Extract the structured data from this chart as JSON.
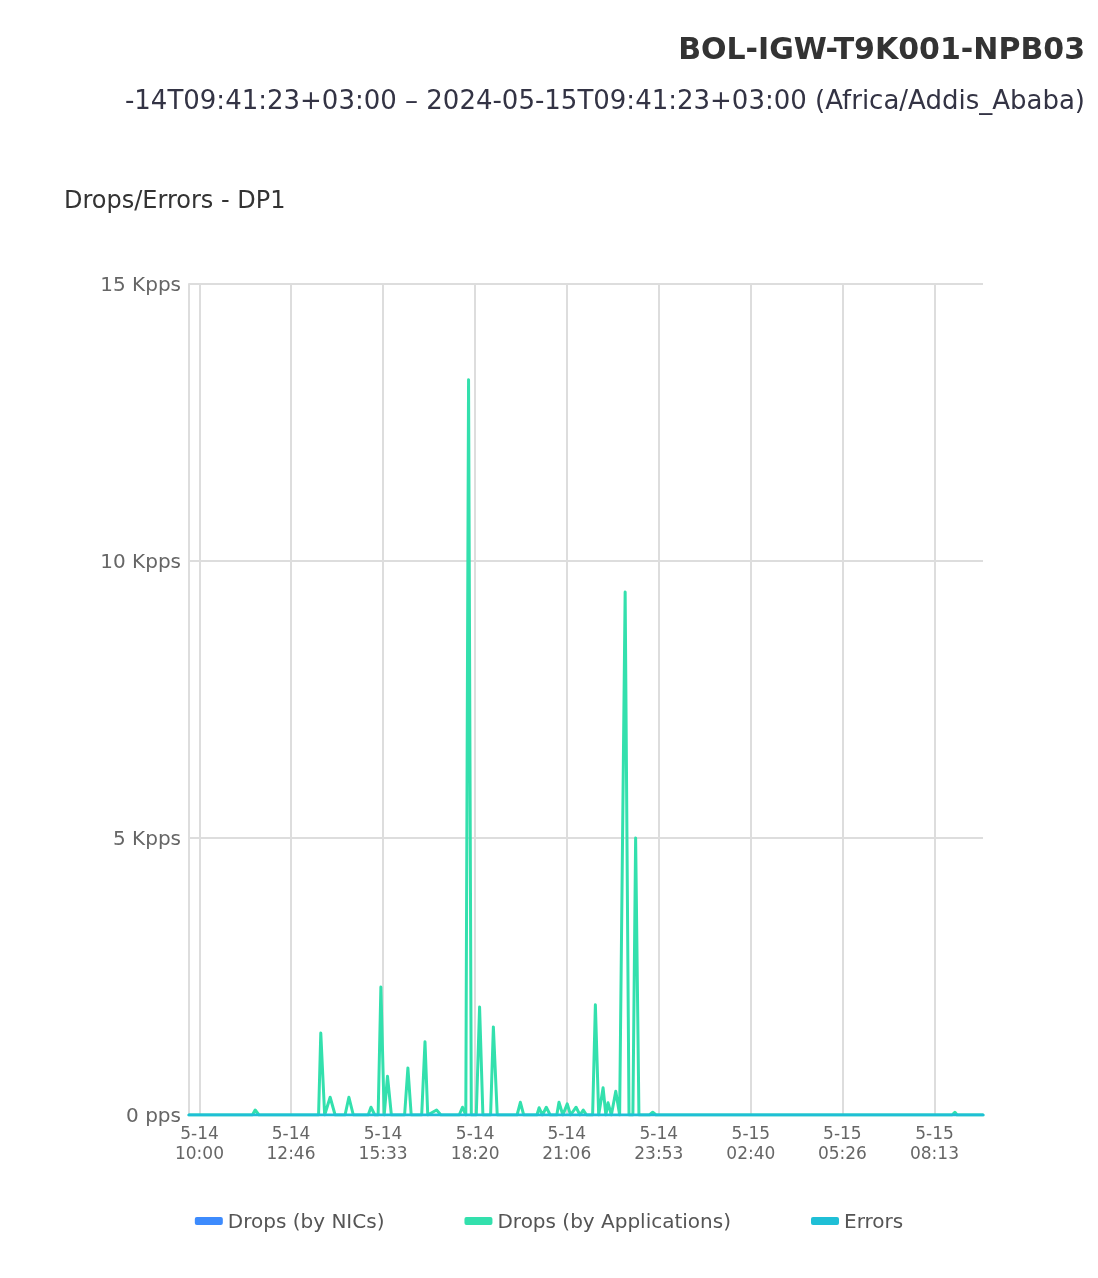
{
  "chart_data": {
    "type": "line",
    "title": "BOL-IGW-T9K001-NPB03",
    "subtitle": "-14T09:41:23+03:00 – 2024-05-15T09:41:23+03:00 (Africa/Addis_Ababa)",
    "annotations": [
      "Drops/Errors - DP1"
    ],
    "xlim": [
      "2024-05-14T09:41",
      "2024-05-15T09:41"
    ],
    "xticks": [
      {
        "value": "2024-05-14T10:00",
        "label": "5-14\n10:00"
      },
      {
        "value": "2024-05-14T12:46",
        "label": "5-14\n12:46"
      },
      {
        "value": "2024-05-14T15:33",
        "label": "5-14\n15:33"
      },
      {
        "value": "2024-05-14T18:20",
        "label": "5-14\n18:20"
      },
      {
        "value": "2024-05-14T21:06",
        "label": "5-14\n21:06"
      },
      {
        "value": "2024-05-14T23:53",
        "label": "5-14\n23:53"
      },
      {
        "value": "2024-05-15T02:40",
        "label": "5-15\n02:40"
      },
      {
        "value": "2024-05-15T05:26",
        "label": "5-15\n05:26"
      },
      {
        "value": "2024-05-15T08:13",
        "label": "5-15\n08:13"
      }
    ],
    "ylim": [
      0,
      15
    ],
    "yticks": [
      {
        "value": 0,
        "label": "0 pps"
      },
      {
        "value": 5,
        "label": "5 Kpps"
      },
      {
        "value": 10,
        "label": "10 Kpps"
      },
      {
        "value": 15,
        "label": "15 Kpps"
      }
    ],
    "grid": true,
    "legend": "bottom",
    "marker": "none",
    "line_style": "solid",
    "series": [
      {
        "name": "Drops (by NICs)",
        "color": "#3d8bfd"
      },
      {
        "name": "Drops (by Applications)",
        "color": "#33e0ad",
        "x": [
          "2024-05-14T09:41",
          "2024-05-14T11:36",
          "2024-05-14T11:41",
          "2024-05-14T11:48",
          "2024-05-14T13:18",
          "2024-05-14T13:36",
          "2024-05-14T13:40",
          "2024-05-14T13:47",
          "2024-05-14T13:57",
          "2024-05-14T14:06",
          "2024-05-14T14:24",
          "2024-05-14T14:31",
          "2024-05-14T14:39",
          "2024-05-14T15:06",
          "2024-05-14T15:11",
          "2024-05-14T15:18",
          "2024-05-14T15:24",
          "2024-05-14T15:29",
          "2024-05-14T15:35",
          "2024-05-14T15:41",
          "2024-05-14T15:48",
          "2024-05-14T16:12",
          "2024-05-14T16:18",
          "2024-05-14T16:24",
          "2024-05-14T16:43",
          "2024-05-14T16:49",
          "2024-05-14T16:54",
          "2024-05-14T17:10",
          "2024-05-14T17:18",
          "2024-05-14T17:51",
          "2024-05-14T17:57",
          "2024-05-14T18:03",
          "2024-05-14T18:08",
          "2024-05-14T18:13",
          "2024-05-14T18:22",
          "2024-05-14T18:28",
          "2024-05-14T18:34",
          "2024-05-14T18:48",
          "2024-05-14T18:53",
          "2024-05-14T19:00",
          "2024-05-14T19:36",
          "2024-05-14T19:42",
          "2024-05-14T19:48",
          "2024-05-14T20:12",
          "2024-05-14T20:16",
          "2024-05-14T20:22",
          "2024-05-14T20:29",
          "2024-05-14T20:36",
          "2024-05-14T20:48",
          "2024-05-14T20:52",
          "2024-05-14T20:59",
          "2024-05-14T21:07",
          "2024-05-14T21:13",
          "2024-05-14T21:23",
          "2024-05-14T21:30",
          "2024-05-14T21:36",
          "2024-05-14T21:42",
          "2024-05-14T21:53",
          "2024-05-14T21:58",
          "2024-05-14T22:04",
          "2024-05-14T22:12",
          "2024-05-14T22:17",
          "2024-05-14T22:21",
          "2024-05-14T22:27",
          "2024-05-14T22:35",
          "2024-05-14T22:42",
          "2024-05-14T22:52",
          "2024-05-14T22:59",
          "2024-05-14T23:06",
          "2024-05-14T23:11",
          "2024-05-14T23:17",
          "2024-05-14T23:36",
          "2024-05-14T23:42",
          "2024-05-14T23:48",
          "2024-05-15T08:45",
          "2024-05-15T08:50",
          "2024-05-15T08:54",
          "2024-05-15T09:41"
        ],
        "values": [
          0,
          0,
          0.09,
          0,
          0,
          0,
          1.48,
          0,
          0.32,
          0,
          0,
          0.32,
          0,
          0,
          0.14,
          0,
          0,
          2.31,
          0,
          0.7,
          0,
          0,
          0.85,
          0,
          0,
          1.32,
          0,
          0.09,
          0,
          0,
          0.14,
          0,
          13.27,
          0,
          0,
          1.95,
          0,
          0,
          1.59,
          0,
          0,
          0.23,
          0,
          0,
          0.13,
          0,
          0.14,
          0,
          0,
          0.23,
          0,
          0.2,
          0,
          0.14,
          0,
          0.09,
          0,
          0,
          1.99,
          0,
          0.49,
          0,
          0.22,
          0,
          0.43,
          0,
          9.44,
          0,
          0,
          5.0,
          0,
          0,
          0.05,
          0,
          0,
          0.05,
          0,
          0
        ]
      },
      {
        "name": "Errors",
        "color": "#1fbfd6",
        "x": [
          "2024-05-14T09:41",
          "2024-05-15T09:41"
        ],
        "values": [
          0,
          0
        ]
      }
    ]
  }
}
